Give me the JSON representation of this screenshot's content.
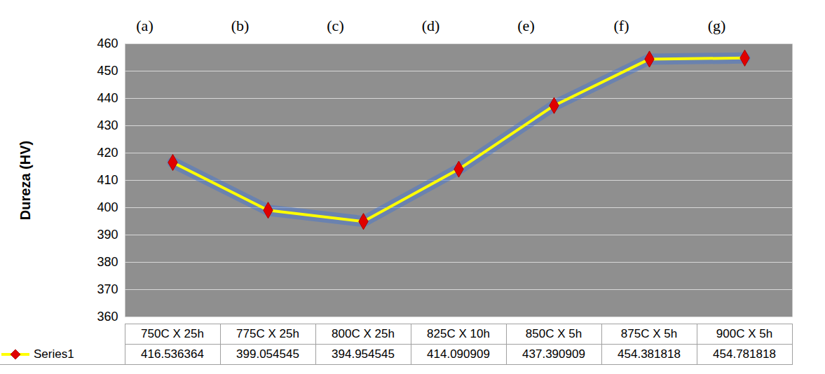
{
  "chart_data": {
    "type": "line",
    "y_label": "Dureza (HV)",
    "categories": [
      "750C X 25h",
      "775C X 25h",
      "800C X 25h",
      "825C X 10h",
      "850C X 5h",
      "875C X 5h",
      "900C X 5h"
    ],
    "series": [
      {
        "name": "Series1",
        "color": "#ffff00",
        "marker": "diamond",
        "line_style": "solid",
        "values": [
          416.536364,
          399.054545,
          394.954545,
          414.090909,
          437.390909,
          454.381818,
          454.781818
        ]
      }
    ],
    "annotations": [
      "(a)",
      "(b)",
      "(c)",
      "(d)",
      "(e)",
      "(f)",
      "(g)"
    ],
    "ylim": [
      360,
      460
    ],
    "yticks": [
      360,
      370,
      380,
      390,
      400,
      410,
      420,
      430,
      440,
      450,
      460
    ],
    "grid": true,
    "legend": "bottom",
    "data_labels": true
  }
}
